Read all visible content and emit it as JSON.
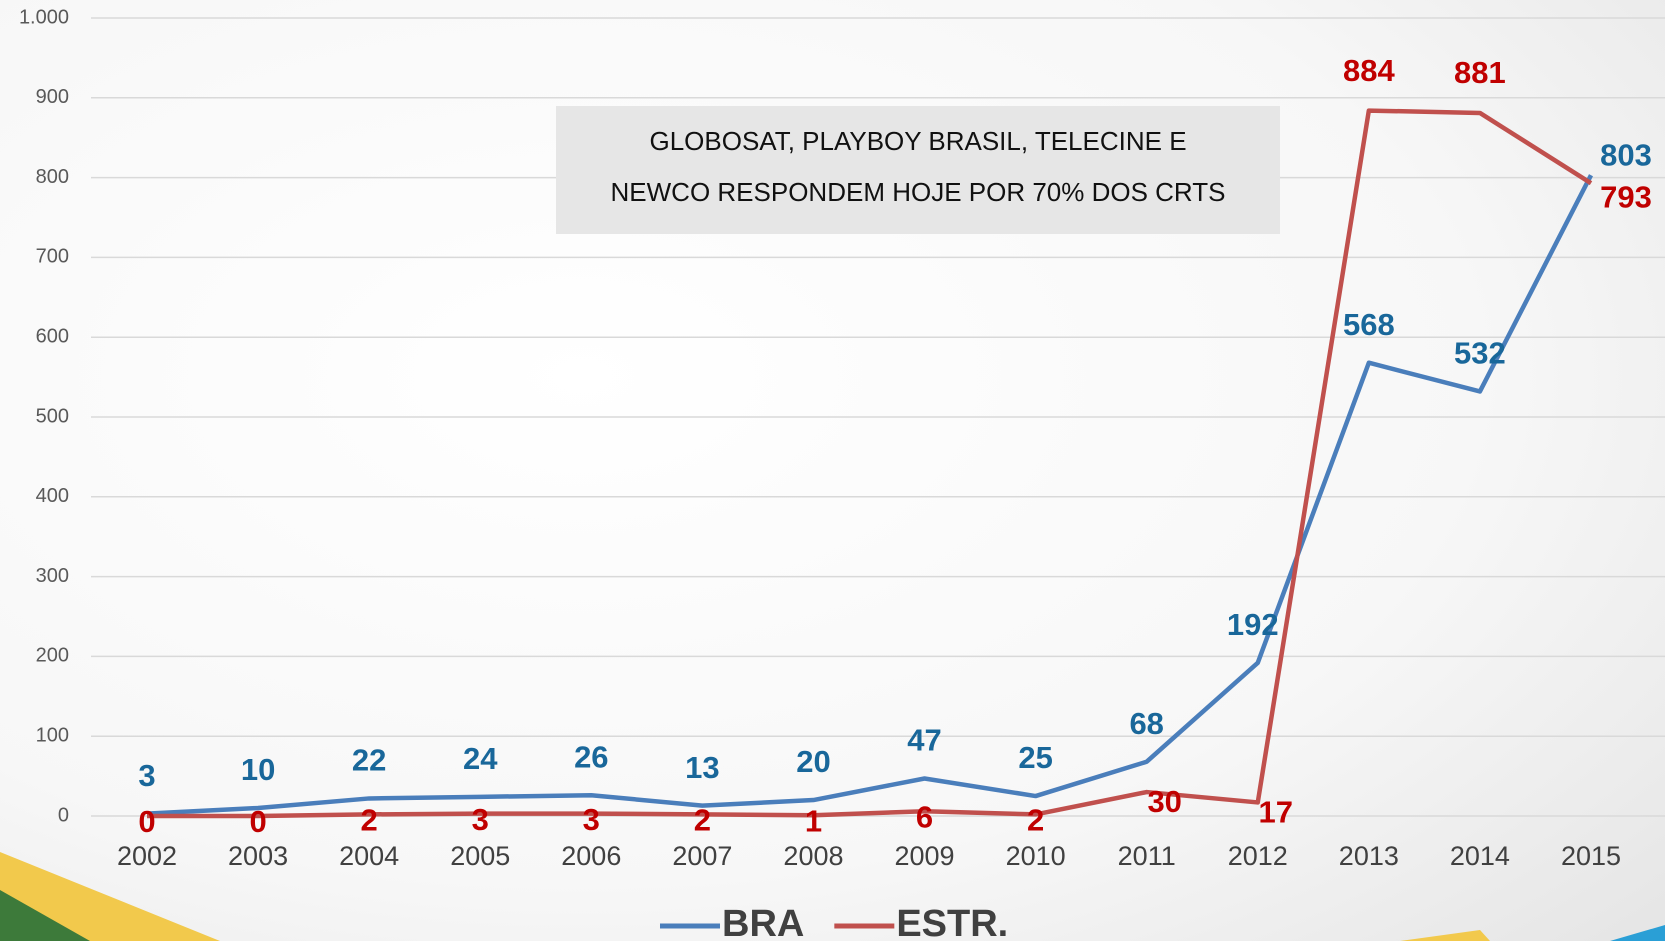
{
  "chart_data": {
    "type": "line",
    "categories": [
      "2002",
      "2003",
      "2004",
      "2005",
      "2006",
      "2007",
      "2008",
      "2009",
      "2010",
      "2011",
      "2012",
      "2013",
      "2014",
      "2015"
    ],
    "series": [
      {
        "name": "BRA",
        "color": "#4a7ebb",
        "label_color": "#19679a",
        "values": [
          3,
          10,
          22,
          24,
          26,
          13,
          20,
          47,
          25,
          68,
          192,
          568,
          532,
          803
        ]
      },
      {
        "name": "ESTR.",
        "color": "#c0504d",
        "label_color": "#c00000",
        "values": [
          0,
          0,
          2,
          3,
          3,
          2,
          1,
          6,
          2,
          30,
          17,
          884,
          881,
          793
        ]
      }
    ],
    "ylim": [
      0,
      1000
    ],
    "yticks": [
      0,
      100,
      200,
      300,
      400,
      500,
      600,
      700,
      800,
      900,
      {
        "value": 1000,
        "label": "1.000"
      }
    ],
    "grid": true,
    "legend": "bottom",
    "annotation": [
      "GLOBOSAT, PLAYBOY BRASIL, TELECINE E",
      "NEWCO RESPONDEM HOJE POR 70% DOS CRTS"
    ]
  }
}
